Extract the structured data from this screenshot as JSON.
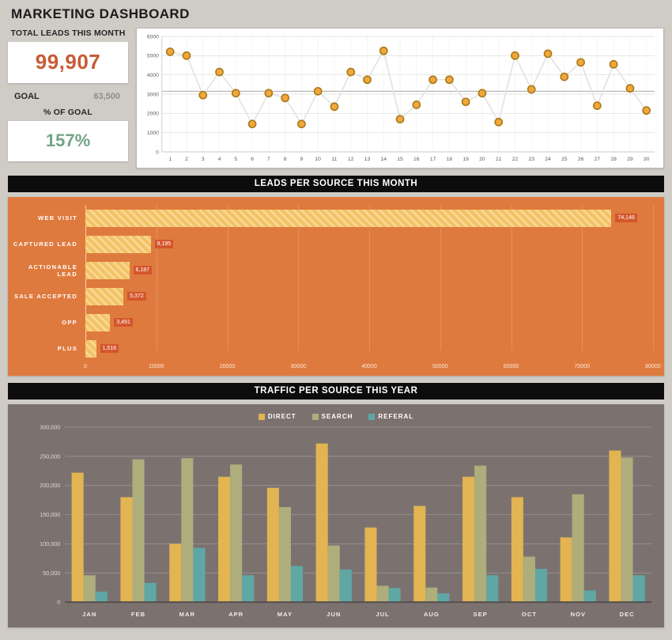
{
  "page_title": "MARKETING DASHBOARD",
  "stats": {
    "total_leads_label": "TOTAL LEADS THIS MONTH",
    "total_leads_value": "99,907",
    "goal_label": "GOAL",
    "goal_value": "63,500",
    "percent_goal_label": "% OF GOAL",
    "percent_goal_value": "157%"
  },
  "sections": {
    "leads_per_source_title": "LEADS PER SOURCE THIS MONTH",
    "traffic_per_source_title": "TRAFFIC PER SOURCE THIS YEAR"
  },
  "colors": {
    "page_bg": "#cfccc6",
    "header_bg": "#0c0c0c",
    "accent_orange": "#c75b36",
    "goal_gray": "#8e8d8a",
    "accent_green": "#73a487",
    "orange_panel": "#df7a3e",
    "orange_bar": "#f3c264",
    "value_badge": "#d4562d",
    "traffic_bg": "#7b7270",
    "marker_fill": "#f1a73c",
    "marker_stroke": "#a87916"
  },
  "chart_data": [
    {
      "id": "daily_leads",
      "type": "line",
      "title": "",
      "x": [
        1,
        2,
        3,
        4,
        5,
        6,
        7,
        8,
        9,
        10,
        11,
        12,
        13,
        14,
        15,
        16,
        17,
        18,
        19,
        20,
        21,
        22,
        23,
        24,
        25,
        26,
        27,
        28,
        29,
        30
      ],
      "values": [
        5200,
        5000,
        2950,
        4150,
        3050,
        1450,
        3050,
        2800,
        1450,
        3150,
        2350,
        4150,
        3750,
        5250,
        1700,
        2450,
        3750,
        3750,
        2600,
        3050,
        1550,
        5000,
        3250,
        5100,
        3900,
        4650,
        2400,
        4550,
        3300,
        2150
      ],
      "ylim": [
        0,
        6000
      ],
      "ytick_step": 1000,
      "reference_line": 3150,
      "grid": true,
      "marker_fill": "#f1a73c",
      "marker_stroke": "#a87916",
      "line_color": "#e3e2e0"
    },
    {
      "id": "leads_per_source",
      "type": "bar",
      "orientation": "horizontal",
      "categories": [
        "WEB VISIT",
        "CAPTURED LEAD",
        "ACTIONABLE LEAD",
        "SALE ACCEPTED",
        "OPP",
        "PLUS"
      ],
      "values": [
        74146,
        9195,
        6187,
        5372,
        3491,
        1516
      ],
      "value_labels": [
        "74,146",
        "9,195",
        "6,187",
        "5,372",
        "3,491",
        "1,516"
      ],
      "xlim": [
        0,
        80000
      ],
      "xtick_labels": [
        "0",
        "10000",
        "20000",
        "30000",
        "40000",
        "50000",
        "60000",
        "70000",
        "80000"
      ],
      "grid": true
    },
    {
      "id": "traffic_per_source",
      "type": "bar",
      "orientation": "vertical",
      "categories": [
        "JAN",
        "FEB",
        "MAR",
        "APR",
        "MAY",
        "JUN",
        "JUL",
        "AUG",
        "SEP",
        "OCT",
        "NOV",
        "DEC"
      ],
      "series": [
        {
          "name": "DIRECT",
          "color": "#e2b452",
          "values": [
            222000,
            180000,
            100000,
            215000,
            196000,
            272000,
            128000,
            165000,
            215000,
            180000,
            111000,
            260000
          ]
        },
        {
          "name": "SEARCH",
          "color": "#aead7c",
          "values": [
            46000,
            245000,
            247000,
            236000,
            163000,
            97000,
            28000,
            25000,
            234000,
            78000,
            185000,
            248000
          ]
        },
        {
          "name": "REFERAL",
          "color": "#5fa7a5",
          "values": [
            18000,
            33000,
            93000,
            46000,
            62000,
            56000,
            24000,
            15000,
            46000,
            57000,
            20000,
            46000
          ]
        }
      ],
      "ylim": [
        0,
        300000
      ],
      "ytick_step": 50000,
      "ytick_labels": [
        "0",
        "50,000",
        "100,000",
        "150,000",
        "200,000",
        "250,000",
        "300,000"
      ],
      "legend_position": "top",
      "grid": true
    }
  ]
}
